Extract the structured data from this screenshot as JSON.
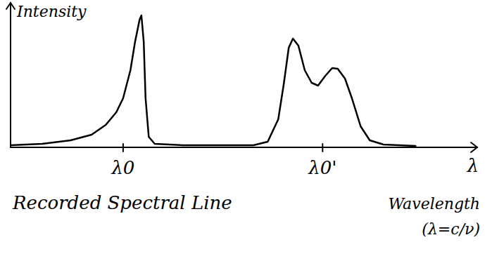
{
  "chart_data": {
    "type": "line",
    "title": "Recorded Spectral Line",
    "y_label": "Intensity",
    "x_label": "λ",
    "annotations": [
      "Wavelength",
      "(λ=c/ν)"
    ],
    "x": [
      0,
      6.9,
      13.1,
      17.7,
      20.8,
      23.1,
      24.6,
      26.2,
      27.2,
      28.2,
      28.6,
      29.1,
      29.5,
      30.2,
      31.5,
      37.7,
      46.9,
      53.1,
      56.2,
      58.5,
      59.7,
      60.8,
      61.7,
      62.9,
      64.3,
      65.8,
      67.2,
      68.8,
      70.3,
      71.5,
      73.1,
      74.6,
      76.5,
      78.5,
      81.5,
      88.5
    ],
    "values": [
      1.5,
      2.5,
      5,
      9,
      16,
      25,
      35,
      55,
      75,
      91,
      94,
      75,
      35,
      7.5,
      2.5,
      1.5,
      1.5,
      1.5,
      4,
      20,
      45,
      71,
      77.5,
      72.5,
      55,
      46,
      44,
      51,
      56.5,
      56,
      49,
      35,
      15,
      5,
      2,
      1
    ],
    "color": "#000000",
    "xlim": [
      0,
      100
    ],
    "ylim": [
      0,
      100
    ],
    "xticks": [
      {
        "value": 24.6,
        "label": "λ0"
      },
      {
        "value": 68.2,
        "label": "λ0'"
      }
    ],
    "yticks": [],
    "tick_labels": "x",
    "grid": false
  }
}
